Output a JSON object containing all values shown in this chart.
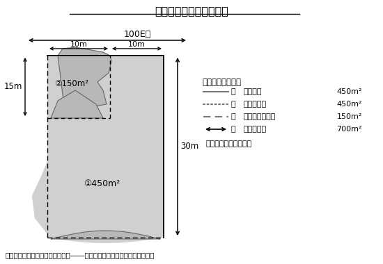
{
  "title": "差し引き計算をする方法",
  "bg_color": "#ffffff",
  "land_fill": "#d8d8d8",
  "legend_header": "』普通住宅地区』",
  "legend_header2": "【普通住宅地区】",
  "legend_items": [
    {
      "line_style": "solid",
      "label1": "線",
      "label2": "不整形地",
      "value": "450m²"
    },
    {
      "line_style": "dotted",
      "label1": "線",
      "label2": "近似整形地",
      "value": "450m²"
    },
    {
      "line_style": "dashed",
      "label1": "線",
      "label2": "隣接する整形地",
      "value": "150m²"
    },
    {
      "line_style": "arrow",
      "label1": "線",
      "label2": "想定整形地",
      "value": "700m²"
    }
  ],
  "note": "〈路線価は千円単位〉",
  "source": "（出典：国税庁「不整形地の評価――差引き計算により評価する場合」）",
  "dim_100E": "100E－",
  "dim_10m_left": "10m",
  "dim_10m_right": "10m",
  "dim_15m": "15m",
  "dim_30m": "30m",
  "label_1": "①450m²",
  "label_2": "②150m²"
}
